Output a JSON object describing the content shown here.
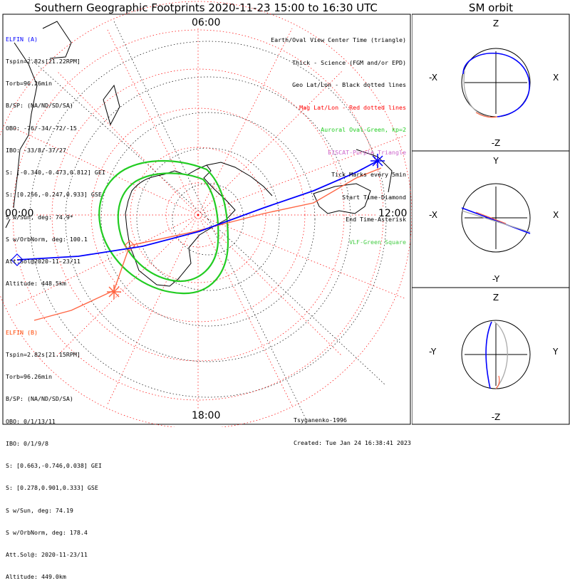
{
  "title": "Southern Geographic Footprints 2020-11-23 15:00 to 16:30 UTC",
  "orbit_title": "SM orbit",
  "hours": {
    "top": "06:00",
    "left": "00:00",
    "right": "12:00",
    "bottom": "18:00"
  },
  "legend": [
    {
      "text": "Earth/Oval View Center Time (triangle)",
      "color": "#000000"
    },
    {
      "text": "Thick - Science (FGM and/or EPD)",
      "color": "#000000"
    },
    {
      "text": "Geo Lat/Lon - Black dotted lines",
      "color": "#000000"
    },
    {
      "text": "Mag Lat/Lon - Red dotted lines",
      "color": "#ff0000"
    },
    {
      "text": "Auroral Oval-Green, kp=2",
      "color": "#22cc22"
    },
    {
      "text": "EISCAT-Purple Triangle",
      "color": "#cc66cc"
    },
    {
      "text": "Tick Marks every 5min",
      "color": "#000000"
    },
    {
      "text": "Start Time-Diamond",
      "color": "#000000"
    },
    {
      "text": "End Time-Asterisk",
      "color": "#000000"
    },
    {
      "text": "VLF-Green Square",
      "color": "#44cc44"
    }
  ],
  "elfin_a": {
    "name": "ELFIN (A)",
    "color": "#0000ff",
    "lines": [
      "Tspin=2.82s[21.22RPM]",
      "Torb=96.26min",
      "B/SP: (NA/ND/SD/SA)",
      "OBO: -76/-34/-72/-15",
      "IBO: -33/8/-37/27",
      "S: [-0.340,-0.473,0.812] GEI",
      "S: [0.256,-0.247,0.933] GSE",
      "S w/Sun, deg: 74.9*",
      "S w/OrbNorm, deg: 100.1",
      "Att.Sol@2020-11-23/11",
      "Altitude: 448.5km"
    ]
  },
  "elfin_b": {
    "name": "ELFIN (B)",
    "color": "#ff4400",
    "lines": [
      "Tspin=2.82s[21.15RPM]",
      "Torb=96.26min",
      "B/SP: (NA/ND/SD/SA)",
      "OBO: 0/1/13/11",
      "IBO: 0/1/9/8",
      "S: [0.663,-0.746,0.038] GEI",
      "S: [0.278,0.901,0.333] GSE",
      "S w/Sun, deg: 74.19",
      "S w/OrbNorm, deg: 178.4",
      "Att.Sol@: 2020-11-23/11",
      "Altitude: 449.0km"
    ]
  },
  "credit": {
    "author": "Tsyganenko-1996",
    "created": "Created: Tue Jan 24 16:38:41 2023"
  },
  "orbit_panels": [
    {
      "top": "Z",
      "bottom": "-Z",
      "left": "-X",
      "right": "X"
    },
    {
      "top": "Y",
      "bottom": "-Y",
      "left": "-X",
      "right": "X"
    },
    {
      "top": "Z",
      "bottom": "-Z",
      "left": "-Y",
      "right": "Y"
    }
  ],
  "colors": {
    "track_a": "#0000ff",
    "track_b": "#ff6644",
    "mag_grid": "#ff0000",
    "geo_grid": "#000000",
    "oval": "#22cc22",
    "coast": "#000000",
    "orbit_grey": "#aaaaaa"
  }
}
